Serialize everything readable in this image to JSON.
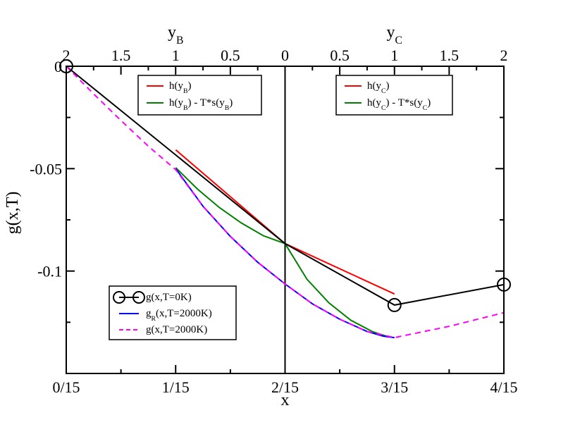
{
  "chart_data": {
    "type": "line",
    "xlabel": "x",
    "ylabel": "g(x,T)",
    "xlim": [
      0,
      4
    ],
    "ylim": [
      -0.15,
      0
    ],
    "x_ticks": [
      "0/15",
      "1/15",
      "2/15",
      "3/15",
      "4/15"
    ],
    "y_ticks": [
      {
        "value": 0,
        "label": "0"
      },
      {
        "value": -0.05,
        "label": "-0.05"
      },
      {
        "value": -0.1,
        "label": "-0.1"
      }
    ],
    "top_axes": [
      {
        "label_main": "y",
        "label_sub": "B",
        "ticks": [
          {
            "x": 0,
            "label": "2"
          },
          {
            "x": 0.5,
            "label": "1.5"
          },
          {
            "x": 1,
            "label": "1"
          },
          {
            "x": 1.5,
            "label": "0.5"
          },
          {
            "x": 2,
            "label": "0"
          }
        ]
      },
      {
        "label_main": "y",
        "label_sub": "C",
        "ticks": [
          {
            "x": 2.5,
            "label": "0.5"
          },
          {
            "x": 3,
            "label": "1"
          },
          {
            "x": 3.5,
            "label": "1.5"
          },
          {
            "x": 4,
            "label": "2"
          }
        ]
      }
    ],
    "series": [
      {
        "name": "g(x,T=0K)",
        "label_main": "g(x,T=0K)",
        "label_sub": "",
        "label_tail": "",
        "color": "#000000",
        "dash": "",
        "markers": [
          0,
          2,
          3
        ],
        "points": [
          [
            0,
            0
          ],
          [
            2,
            -0.0866
          ],
          [
            3,
            -0.1166
          ],
          [
            4,
            -0.1066
          ]
        ]
      },
      {
        "name": "gR(x,T=2000K)",
        "label_main": "g",
        "label_sub": "R",
        "label_tail": "(x,T=2000K)",
        "color": "#0000ff",
        "dash": "",
        "markers": [],
        "points": [
          [
            1,
            -0.05
          ],
          [
            1.25,
            -0.0684
          ],
          [
            1.5,
            -0.0831
          ],
          [
            1.75,
            -0.0957
          ],
          [
            2,
            -0.1063
          ],
          [
            2.25,
            -0.116
          ],
          [
            2.5,
            -0.1235
          ],
          [
            2.75,
            -0.1295
          ],
          [
            2.9,
            -0.1318
          ],
          [
            3,
            -0.1325
          ]
        ]
      },
      {
        "name": "g(x,T=2000K)",
        "label_main": "g(x,T=2000K)",
        "label_sub": "",
        "label_tail": "",
        "color": "#ff00ff",
        "dash": "8,6",
        "markers": [],
        "points": [
          [
            0,
            0
          ],
          [
            0.25,
            -0.0135
          ],
          [
            0.5,
            -0.0265
          ],
          [
            0.75,
            -0.039
          ],
          [
            1,
            -0.0505
          ],
          [
            1.25,
            -0.0684
          ],
          [
            1.5,
            -0.0831
          ],
          [
            1.75,
            -0.0957
          ],
          [
            2,
            -0.1063
          ],
          [
            2.25,
            -0.116
          ],
          [
            2.5,
            -0.1235
          ],
          [
            2.75,
            -0.1295
          ],
          [
            3,
            -0.1325
          ],
          [
            3.5,
            -0.127
          ],
          [
            4,
            -0.1203
          ]
        ]
      }
    ],
    "extra_curves": [
      {
        "name": "h(yB)",
        "color": "#ff0000",
        "points": [
          [
            1,
            -0.0408
          ],
          [
            2,
            -0.0866
          ]
        ]
      },
      {
        "name": "h(yB) - T*s(yB)",
        "color": "#008000",
        "points": [
          [
            1,
            -0.0495
          ],
          [
            1.2,
            -0.06
          ],
          [
            1.4,
            -0.069
          ],
          [
            1.6,
            -0.0765
          ],
          [
            1.8,
            -0.0827
          ],
          [
            2,
            -0.0866
          ]
        ]
      },
      {
        "name": "h(yC)",
        "color": "#ff0000",
        "points": [
          [
            2,
            -0.0866
          ],
          [
            3,
            -0.1112
          ]
        ]
      },
      {
        "name": "h(yC) - T*s(yC)",
        "color": "#008000",
        "points": [
          [
            2,
            -0.0866
          ],
          [
            2.2,
            -0.104
          ],
          [
            2.4,
            -0.1155
          ],
          [
            2.6,
            -0.124
          ],
          [
            2.8,
            -0.1296
          ],
          [
            2.95,
            -0.1322
          ]
        ]
      }
    ],
    "legends": [
      {
        "position": "top-left-panel",
        "entries": [
          {
            "main": "h(y",
            "sub": "B",
            "tail": ")",
            "color": "#ff0000"
          },
          {
            "main": "h(y",
            "sub": "B",
            "tail": ") - T*s(y",
            "sub2": "B",
            "tail2": ")",
            "color": "#008000"
          }
        ]
      },
      {
        "position": "top-right-panel",
        "entries": [
          {
            "main": "h(y",
            "sub": "C",
            "tail": ")",
            "color": "#ff0000"
          },
          {
            "main": "h(y",
            "sub": "C",
            "tail": ") - T*s(y",
            "sub2": "C",
            "tail2": ")",
            "color": "#008000"
          }
        ]
      }
    ]
  }
}
